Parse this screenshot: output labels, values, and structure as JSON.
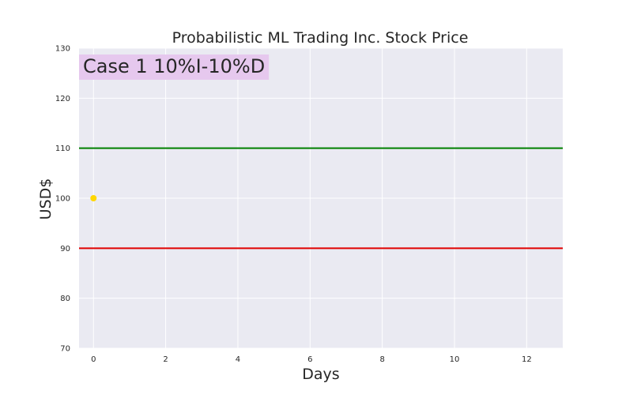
{
  "chart_data": {
    "type": "scatter",
    "title": "Probabilistic ML Trading Inc. Stock Price",
    "xlabel": "Days",
    "ylabel": "USD$",
    "xlim": [
      -0.4,
      13
    ],
    "ylim": [
      70,
      130
    ],
    "xticks": [
      "0",
      "2",
      "4",
      "6",
      "8",
      "10",
      "12"
    ],
    "yticks": [
      "70",
      "80",
      "90",
      "100",
      "110",
      "120",
      "130"
    ],
    "grid": true,
    "annotation": "Case 1 10%I-10%D",
    "series": [
      {
        "points": [
          {
            "x": 0,
            "y": 100
          }
        ],
        "color": "#FFD700"
      }
    ],
    "hlines": [
      {
        "y": 110,
        "color": "#008000"
      },
      {
        "y": 90,
        "color": "#E00000"
      }
    ],
    "colors": {
      "plot_background": "#EAEAF2",
      "grid": "#FFFFFF",
      "annotation_box": "#E6C8EE"
    }
  }
}
